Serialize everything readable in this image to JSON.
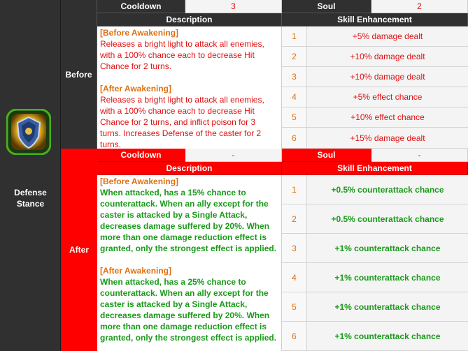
{
  "skill": {
    "name_line1": "Defense",
    "name_line2": "Stance",
    "icon": "shield-emblem-icon",
    "colors": {
      "icon_green": "#4caf20",
      "icon_gold": "#e8b020",
      "icon_blue": "#3a5fa0"
    }
  },
  "before": {
    "label": "Before",
    "cooldown_label": "Cooldown",
    "cooldown_value": "3",
    "soul_label": "Soul",
    "soul_value": "2",
    "description_header": "Description",
    "enhancement_header": "Skill Enhancement",
    "desc_before_tag": "[Before Awakening]",
    "desc_before_text": "Releases a bright light to attack all enemies, with a 100% chance each to decrease Hit Chance for 2 turns.",
    "desc_after_tag": "[After Awakening]",
    "desc_after_text": "Releases a bright light to attack all enemies, with a 100% chance each to decrease Hit Chance for 2 turns, and inflict poison for 3 turns. Increases Defense of the caster for 2 turns.",
    "enhancements": [
      {
        "num": "1",
        "text": "+5% damage dealt"
      },
      {
        "num": "2",
        "text": "+10% damage dealt"
      },
      {
        "num": "3",
        "text": "+10% damage dealt"
      },
      {
        "num": "4",
        "text": "+5% effect chance"
      },
      {
        "num": "5",
        "text": "+10% effect chance"
      },
      {
        "num": "6",
        "text": "+15% damage dealt"
      }
    ]
  },
  "after": {
    "label": "After",
    "cooldown_label": "Cooldown",
    "cooldown_value": "-",
    "soul_label": "Soul",
    "soul_value": "-",
    "description_header": "Description",
    "enhancement_header": "Skill Enhancement",
    "desc_before_tag": "[Before Awakening]",
    "desc_before_text": "When attacked, has a 15% chance to counterattack. When an ally except for the caster is attacked by a Single Attack, decreases damage suffered by 20%. When more than one damage reduction effect is granted, only the strongest effect is applied.",
    "desc_after_tag": "[After Awakening]",
    "desc_after_text": "When attacked, has a 25% chance to counterattack. When an ally except for the caster is attacked by a Single Attack, decreases damage suffered by 20%. When more than one damage reduction effect is granted, only the strongest effect is applied.",
    "enhancements": [
      {
        "num": "1",
        "text": "+0.5% counterattack chance"
      },
      {
        "num": "2",
        "text": "+0.5% counterattack chance"
      },
      {
        "num": "3",
        "text": "+1% counterattack chance"
      },
      {
        "num": "4",
        "text": "+1% counterattack chance"
      },
      {
        "num": "5",
        "text": "+1% counterattack chance"
      },
      {
        "num": "6",
        "text": "+1% counterattack chance"
      }
    ]
  }
}
